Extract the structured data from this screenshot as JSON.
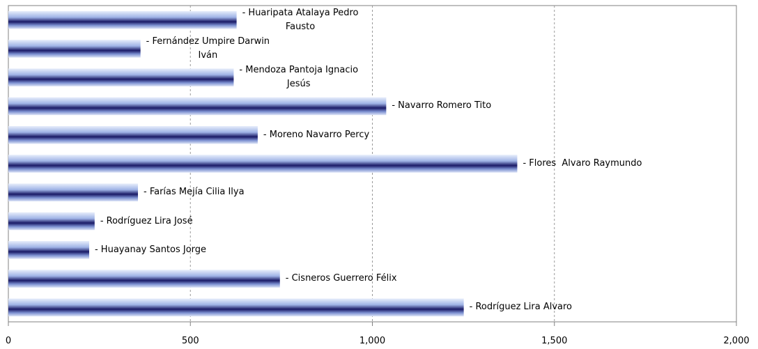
{
  "chart_data": {
    "type": "hbar",
    "categories": [
      "- Huaripata Atalaya Pedro\nFausto",
      "- Fernández Umpire Darwin\nIván",
      "- Mendoza Pantoja Ignacio\nJesús",
      "- Navarro Romero Tito",
      "- Moreno Navarro Percy",
      "- Flores  Alvaro Raymundo",
      "- Farías Mejía Cilia Ilya",
      "- Rodríguez Lira José",
      "- Huayanay Santos Jorge",
      "- Cisneros Guerrero Félix",
      "- Rodríguez Lira Alvaro"
    ],
    "values": [
      627,
      363,
      619,
      1038,
      685,
      1398,
      356,
      237,
      222,
      746,
      1251
    ],
    "color": "#1a1a66",
    "xlim": [
      0,
      2000
    ],
    "xticks": [
      0,
      500,
      {
        "value": 1000,
        "label": "1,000"
      },
      {
        "value": 1500,
        "label": "1,500"
      },
      {
        "value": 2000,
        "label": "2,000"
      }
    ],
    "grid": true
  }
}
